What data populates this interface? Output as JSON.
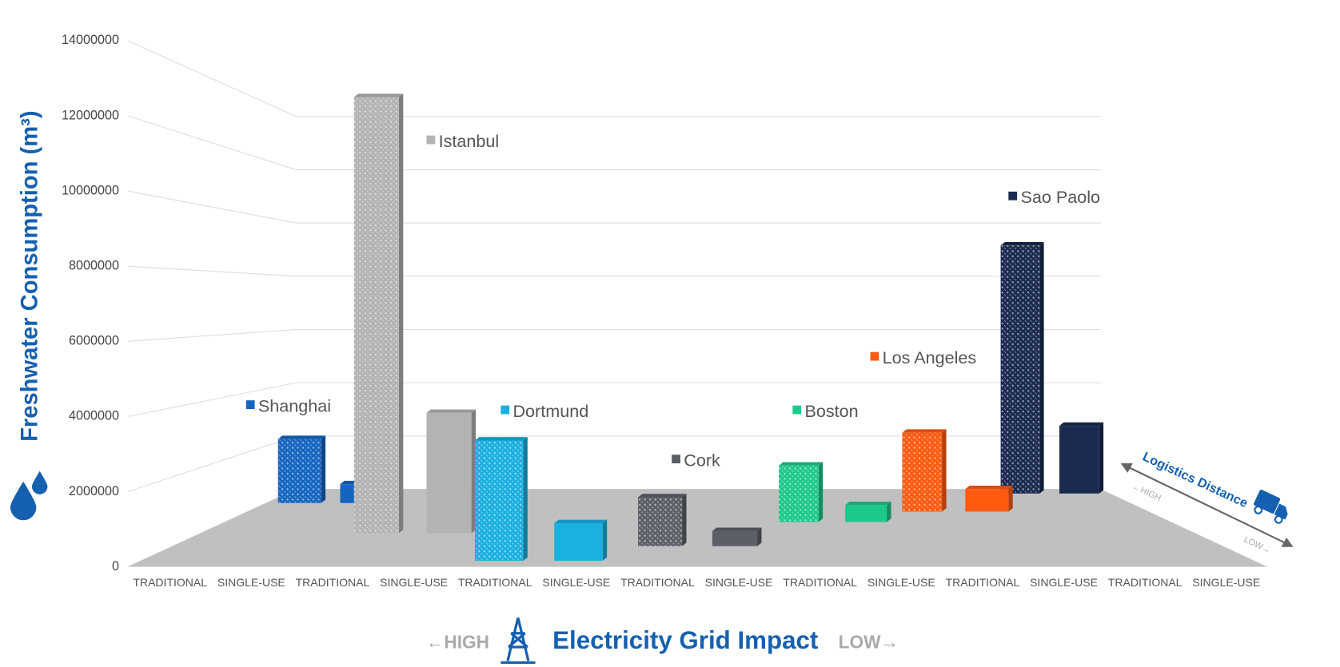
{
  "chart_data": {
    "type": "bar",
    "y_label": "Freshwater Consumption (m³)",
    "x_label": "Electricity Grid Impact",
    "annotations": [
      "←HIGH",
      "LOW→",
      "Logistics Distance",
      "←HIGH",
      "LOW→"
    ],
    "categories": [
      "TRADITIONAL",
      "SINGLE-USE",
      "TRADITIONAL",
      "SINGLE-USE",
      "TRADITIONAL",
      "SINGLE-USE",
      "TRADITIONAL",
      "SINGLE-USE",
      "TRADITIONAL",
      "SINGLE-USE",
      "TRADITIONAL",
      "SINGLE-USE",
      "TRADITIONAL",
      "SINGLE-USE"
    ],
    "series": [
      {
        "name": "Shanghai",
        "color": "#1565c0",
        "values": [
          1700000,
          500000,
          null,
          null,
          null,
          null,
          null,
          null,
          null,
          null,
          null,
          null,
          null,
          null
        ]
      },
      {
        "name": "Istanbul",
        "color": "#b3b3b3",
        "values": [
          null,
          null,
          11600000,
          3200000,
          null,
          null,
          null,
          null,
          null,
          null,
          null,
          null,
          null,
          null
        ]
      },
      {
        "name": "Dortmund",
        "color": "#1ab0e0",
        "values": [
          null,
          null,
          null,
          null,
          3200000,
          1000000,
          null,
          null,
          null,
          null,
          null,
          null,
          null,
          null
        ]
      },
      {
        "name": "Cork",
        "color": "#5c5f66",
        "values": [
          null,
          null,
          null,
          null,
          null,
          null,
          1300000,
          400000,
          null,
          null,
          null,
          null,
          null,
          null
        ]
      },
      {
        "name": "Boston",
        "color": "#1dc98a",
        "values": [
          null,
          null,
          null,
          null,
          null,
          null,
          null,
          null,
          1500000,
          450000,
          null,
          null,
          null,
          null
        ]
      },
      {
        "name": "Los Angeles",
        "color": "#ff5a10",
        "values": [
          null,
          null,
          null,
          null,
          null,
          null,
          null,
          null,
          null,
          null,
          2100000,
          600000,
          null,
          null
        ]
      },
      {
        "name": "Sao Paolo",
        "color": "#1a2a50",
        "values": [
          null,
          null,
          null,
          null,
          null,
          null,
          null,
          null,
          null,
          null,
          null,
          null,
          6600000,
          1800000
        ]
      }
    ],
    "ylim": [
      0,
      14000000
    ],
    "yticks": [
      0,
      2000000,
      4000000,
      6000000,
      8000000,
      10000000,
      12000000,
      14000000
    ],
    "grid": true
  }
}
